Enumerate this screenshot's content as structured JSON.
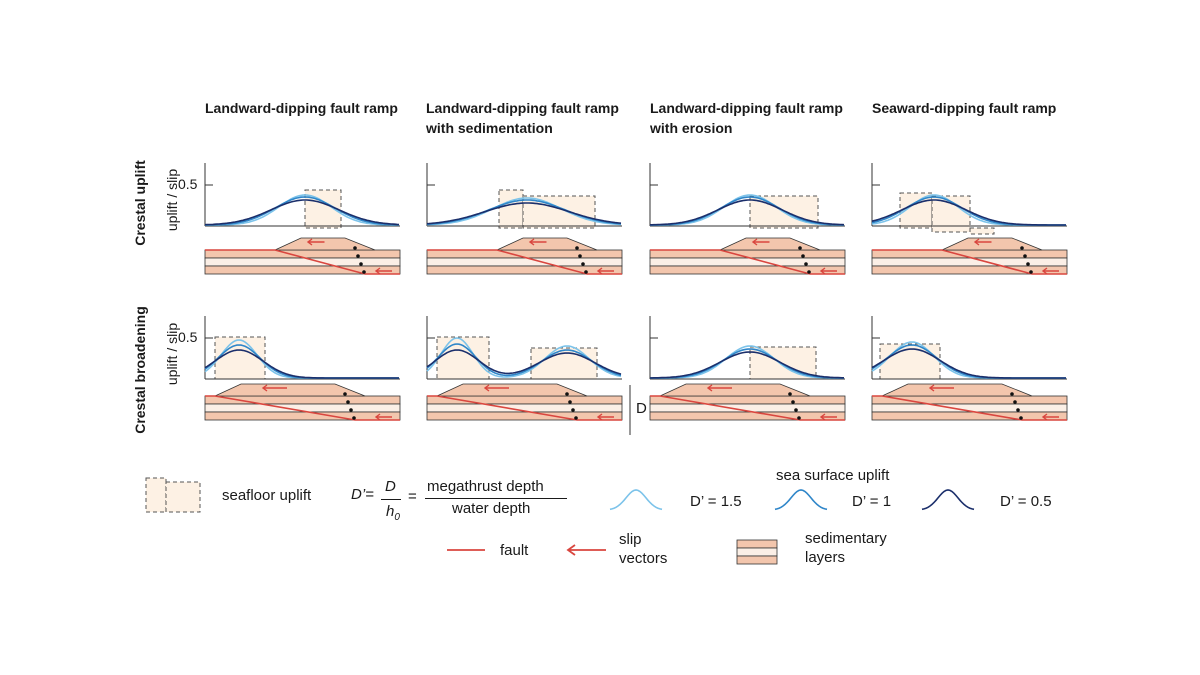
{
  "columns": [
    {
      "line1": "Landward-dipping fault ramp",
      "line2": ""
    },
    {
      "line1": "Landward-dipping fault ramp",
      "line2": "with sedimentation"
    },
    {
      "line1": "Landward-dipping fault ramp",
      "line2": "with erosion"
    },
    {
      "line1": "Seaward-dipping fault ramp",
      "line2": ""
    }
  ],
  "rows": [
    {
      "label": "Crestal uplift",
      "axis_label": "uplift / slip",
      "tick": "0.5"
    },
    {
      "label": "Crestal broadening",
      "axis_label": "uplift / slip",
      "tick": "0.5"
    }
  ],
  "depth_marker": "D",
  "legend": {
    "seafloor_uplift": "seafloor uplift",
    "formula": {
      "lhs": "D’=",
      "numerator": "D",
      "denominator": "h",
      "denominator_sub": "0",
      "equals": "=",
      "rhs_numerator": "megathrust depth",
      "rhs_denominator": "water depth"
    },
    "sea_surface_title": "sea surface uplift",
    "curves": [
      {
        "label": "D’ = 1.5",
        "color": "#7cc3ea"
      },
      {
        "label": "D’ = 1",
        "color": "#2f86c9"
      },
      {
        "label": "D’ = 0.5",
        "color": "#1b2f6b"
      }
    ],
    "fault_label": "fault",
    "slip_label_1": "slip",
    "slip_label_2": "vectors",
    "sed_label_1": "sedimentary",
    "sed_label_2": "layers"
  },
  "colors": {
    "fault": "#d9463f",
    "layer_fill": "#f3c6ad",
    "layer_light": "#fbefe6",
    "uplift_fill": "#fdf1e4",
    "dash": "#555555"
  }
}
